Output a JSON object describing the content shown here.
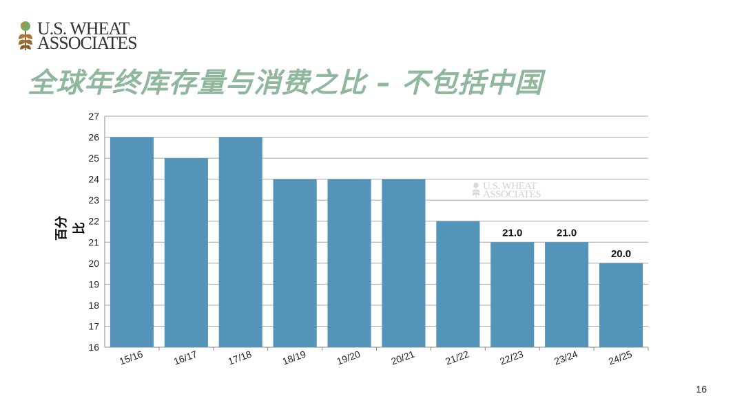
{
  "logo": {
    "line1": "U.S. WHEAT",
    "line2": "ASSOCIATES"
  },
  "title": "全球年终库存量与消费之比 – 不包括中国",
  "page_number": "16",
  "colors": {
    "bar": "#5394b8",
    "title": "#8fb79c",
    "grid": "#a6a6a6"
  },
  "chart_data": {
    "type": "bar",
    "title": "",
    "xlabel": "",
    "ylabel": "百分比",
    "ylim": [
      16,
      27
    ],
    "yticks": [
      16,
      17,
      18,
      19,
      20,
      21,
      22,
      23,
      24,
      25,
      26,
      27
    ],
    "categories": [
      "15/16",
      "16/17",
      "17/18",
      "18/19",
      "19/20",
      "20/21",
      "21/22",
      "22/23",
      "23/24",
      "24/25"
    ],
    "values": [
      26,
      25,
      26,
      24,
      24,
      24,
      22,
      21,
      21,
      20
    ],
    "data_labels": [
      "",
      "",
      "",
      "",
      "",
      "",
      "",
      "21.0",
      "21.0",
      "20.0"
    ],
    "grid": true,
    "legend": "none"
  }
}
